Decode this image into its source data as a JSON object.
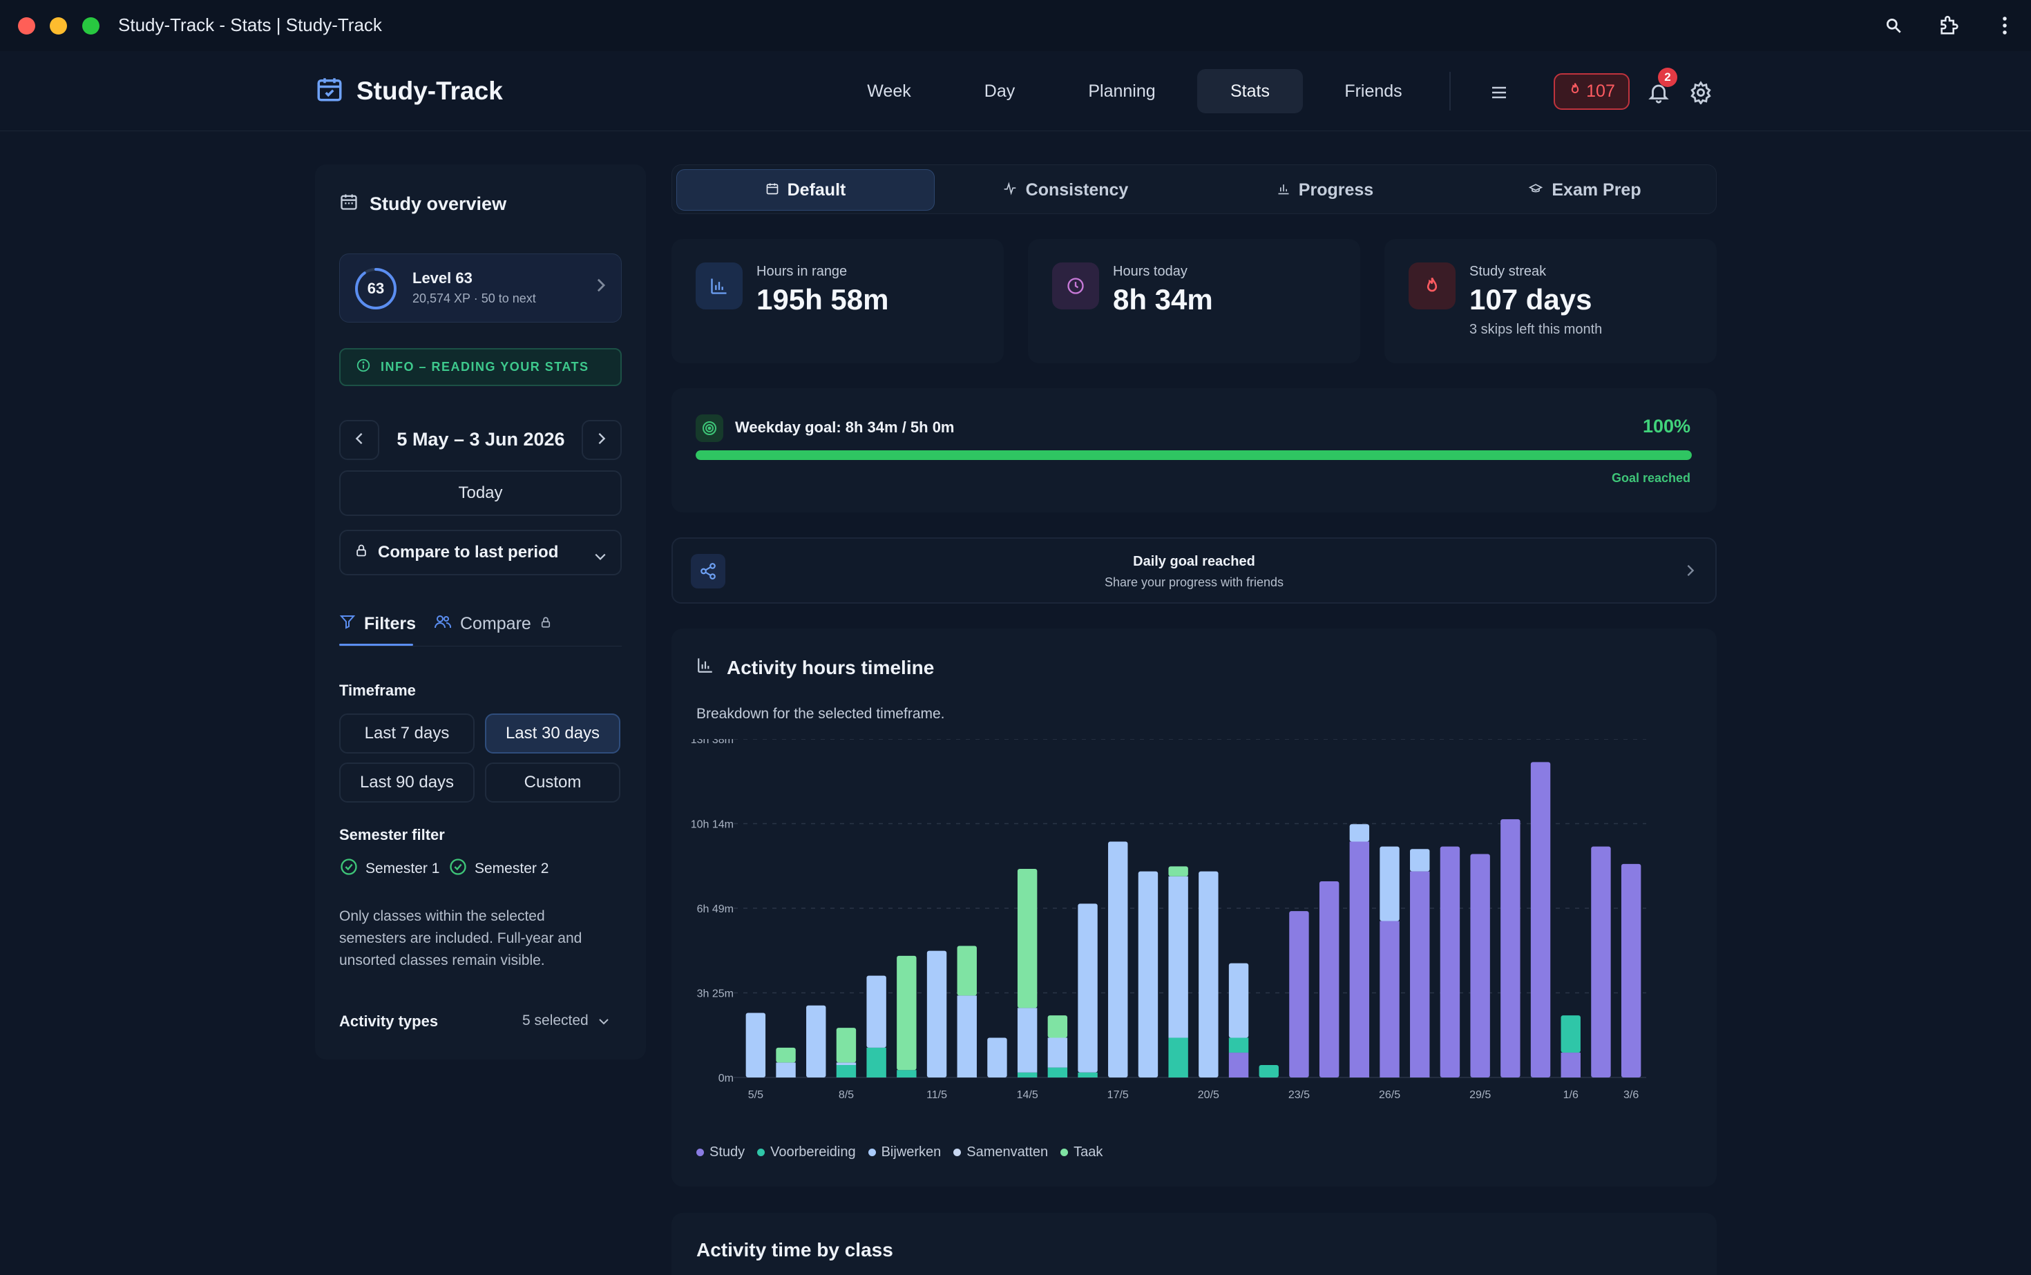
{
  "window": {
    "title": "Study-Track - Stats | Study-Track"
  },
  "brand": {
    "name": "Study-Track"
  },
  "nav": {
    "items": [
      "Week",
      "Day",
      "Planning",
      "Stats",
      "Friends"
    ],
    "active": "Stats"
  },
  "header": {
    "streak_count": "107",
    "notification_count": "2"
  },
  "sidebar": {
    "title": "Study overview",
    "level": {
      "number": "63",
      "name": "Level 63",
      "xp": "20,574 XP · 50 to next",
      "progress": 0.9
    },
    "info_label": "INFO – READING YOUR STATS",
    "date_range": "5 May – 3 Jun 2026",
    "today_label": "Today",
    "compare_select": "Compare to last period",
    "tabs": {
      "filters": "Filters",
      "compare": "Compare"
    },
    "timeframe": {
      "label": "Timeframe",
      "options": [
        "Last 7 days",
        "Last 30 days",
        "Last 90 days",
        "Custom"
      ],
      "selected": "Last 30 days"
    },
    "semester": {
      "label": "Semester filter",
      "options": [
        "Semester 1",
        "Semester 2"
      ],
      "note": "Only classes within the selected semesters are included. Full-year and unsorted classes remain visible."
    },
    "activity_types": {
      "label": "Activity types",
      "value": "5 selected"
    }
  },
  "stats_tabs": [
    "Default",
    "Consistency",
    "Progress",
    "Exam Prep"
  ],
  "kpis": [
    {
      "label": "Hours in range",
      "value": "195h 58m"
    },
    {
      "label": "Hours today",
      "value": "8h 34m"
    },
    {
      "label": "Study streak",
      "value": "107 days",
      "sub": "3 skips left this month"
    }
  ],
  "goal": {
    "text": "Weekday goal: 8h 34m / 5h 0m",
    "percent_label": "100%",
    "progress": 1.0,
    "status": "Goal reached"
  },
  "share": {
    "title": "Daily goal reached",
    "subtitle": "Share your progress with friends"
  },
  "chart_card": {
    "title": "Activity hours timeline",
    "subtitle": "Breakdown for the selected timeframe."
  },
  "chart_data": {
    "type": "bar",
    "stacked": true,
    "unit": "hours",
    "y_ticks": [
      "0m",
      "3h 25m",
      "6h 49m",
      "10h 14m",
      "13h 38m"
    ],
    "ylim": [
      0,
      13.63
    ],
    "grid": true,
    "legend_position": "bottom-left",
    "categories": [
      "5/5",
      "6/5",
      "7/5",
      "8/5",
      "9/5",
      "10/5",
      "11/5",
      "12/5",
      "13/5",
      "14/5",
      "15/5",
      "16/5",
      "17/5",
      "18/5",
      "19/5",
      "20/5",
      "21/5",
      "22/5",
      "23/5",
      "24/5",
      "25/5",
      "26/5",
      "27/5",
      "28/5",
      "29/5",
      "30/5",
      "31/5",
      "1/6",
      "2/6",
      "3/6"
    ],
    "x_tick_labels": [
      "5/5",
      "8/5",
      "11/5",
      "14/5",
      "17/5",
      "20/5",
      "23/5",
      "26/5",
      "29/5",
      "1/6",
      "3/6"
    ],
    "series": [
      {
        "name": "Study",
        "color": "#8a7ce3",
        "values": [
          0,
          0,
          0,
          0,
          0,
          0,
          0,
          0,
          0,
          0,
          0,
          0,
          0,
          0,
          0,
          0,
          1.0,
          0,
          6.7,
          7.9,
          9.5,
          6.3,
          8.3,
          9.3,
          9.0,
          10.4,
          12.7,
          1.0,
          9.3,
          8.6
        ]
      },
      {
        "name": "Voorbereiding",
        "color": "#2fc6a8",
        "values": [
          0,
          0,
          0,
          0.5,
          1.2,
          0.3,
          0,
          0,
          0,
          0.2,
          0.4,
          0.2,
          0,
          0,
          1.6,
          0,
          0.6,
          0.5,
          0,
          0,
          0,
          0,
          0,
          0,
          0,
          0,
          0,
          1.5,
          0,
          0
        ]
      },
      {
        "name": "Bijwerken",
        "color": "#a9cbfb",
        "values": [
          2.6,
          0.6,
          2.9,
          0.1,
          2.9,
          0,
          5.1,
          3.3,
          1.6,
          2.6,
          1.2,
          6.8,
          9.5,
          8.3,
          6.5,
          8.3,
          3.0,
          0,
          0,
          0,
          0.7,
          3.0,
          0.9,
          0,
          0,
          0,
          0,
          0,
          0,
          0
        ]
      },
      {
        "name": "Samenvatten",
        "color": "#c7d6f0",
        "values": [
          0,
          0,
          0,
          0,
          0,
          0,
          0,
          0,
          0,
          0,
          0,
          0,
          0,
          0,
          0,
          0,
          0,
          0,
          0,
          0,
          0,
          0,
          0,
          0,
          0,
          0,
          0,
          0,
          0,
          0
        ]
      },
      {
        "name": "Taak",
        "color": "#7fe3a3",
        "values": [
          0,
          0.6,
          0,
          1.4,
          0,
          4.6,
          0,
          2.0,
          0,
          5.6,
          0.9,
          0,
          0,
          0,
          0.4,
          0,
          0,
          0,
          0,
          0,
          0,
          0,
          0,
          0,
          0,
          0,
          0,
          0,
          0,
          0
        ]
      }
    ]
  },
  "class_card": {
    "title": "Activity time by class"
  }
}
